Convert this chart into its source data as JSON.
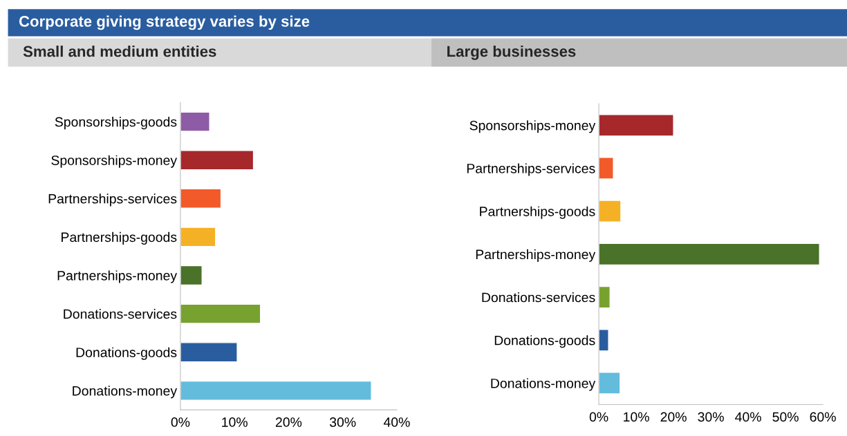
{
  "chart_data": [
    {
      "type": "bar",
      "orientation": "horizontal",
      "title": "Corporate giving strategy varies by size",
      "subtitle": "Small and medium entities",
      "categories": [
        "Sponsorships-goods",
        "Sponsorships-money",
        "Partnerships-services",
        "Partnerships-goods",
        "Partnerships-money",
        "Donations-services",
        "Donations-goods",
        "Donations-money"
      ],
      "values": [
        5.4,
        13.5,
        7.5,
        6.5,
        4.0,
        14.8,
        10.5,
        35.3
      ],
      "colors": [
        "#8e5ba6",
        "#a6282b",
        "#f25a29",
        "#f5b125",
        "#4a7228",
        "#78a22f",
        "#2a5d9f",
        "#63bcdc"
      ],
      "xlim": [
        0,
        40
      ],
      "xticks": [
        {
          "value": 0,
          "label": "0%"
        },
        {
          "value": 10,
          "label": "10%"
        },
        {
          "value": 20,
          "label": "20%"
        },
        {
          "value": 30,
          "label": "30%"
        },
        {
          "value": 40,
          "label": "40%"
        }
      ],
      "grid": false,
      "legend": false
    },
    {
      "type": "bar",
      "orientation": "horizontal",
      "subtitle": "Large businesses",
      "categories": [
        "Sponsorships-money",
        "Partnerships-services",
        "Partnerships-goods",
        "Partnerships-money",
        "Donations-services",
        "Donations-goods",
        "Donations-money"
      ],
      "values": [
        20.0,
        3.9,
        5.9,
        59.1,
        3.0,
        2.6,
        5.7
      ],
      "colors": [
        "#a6282b",
        "#f25a29",
        "#f5b125",
        "#4a7228",
        "#78a22f",
        "#2a5d9f",
        "#63bcdc"
      ],
      "xlim": [
        0,
        60
      ],
      "xticks": [
        {
          "value": 0,
          "label": "0%"
        },
        {
          "value": 10,
          "label": "10%"
        },
        {
          "value": 20,
          "label": "20%"
        },
        {
          "value": 30,
          "label": "30%"
        },
        {
          "value": 40,
          "label": "40%"
        },
        {
          "value": 50,
          "label": "50%"
        },
        {
          "value": 60,
          "label": "60%"
        }
      ],
      "grid": false,
      "legend": false
    }
  ]
}
